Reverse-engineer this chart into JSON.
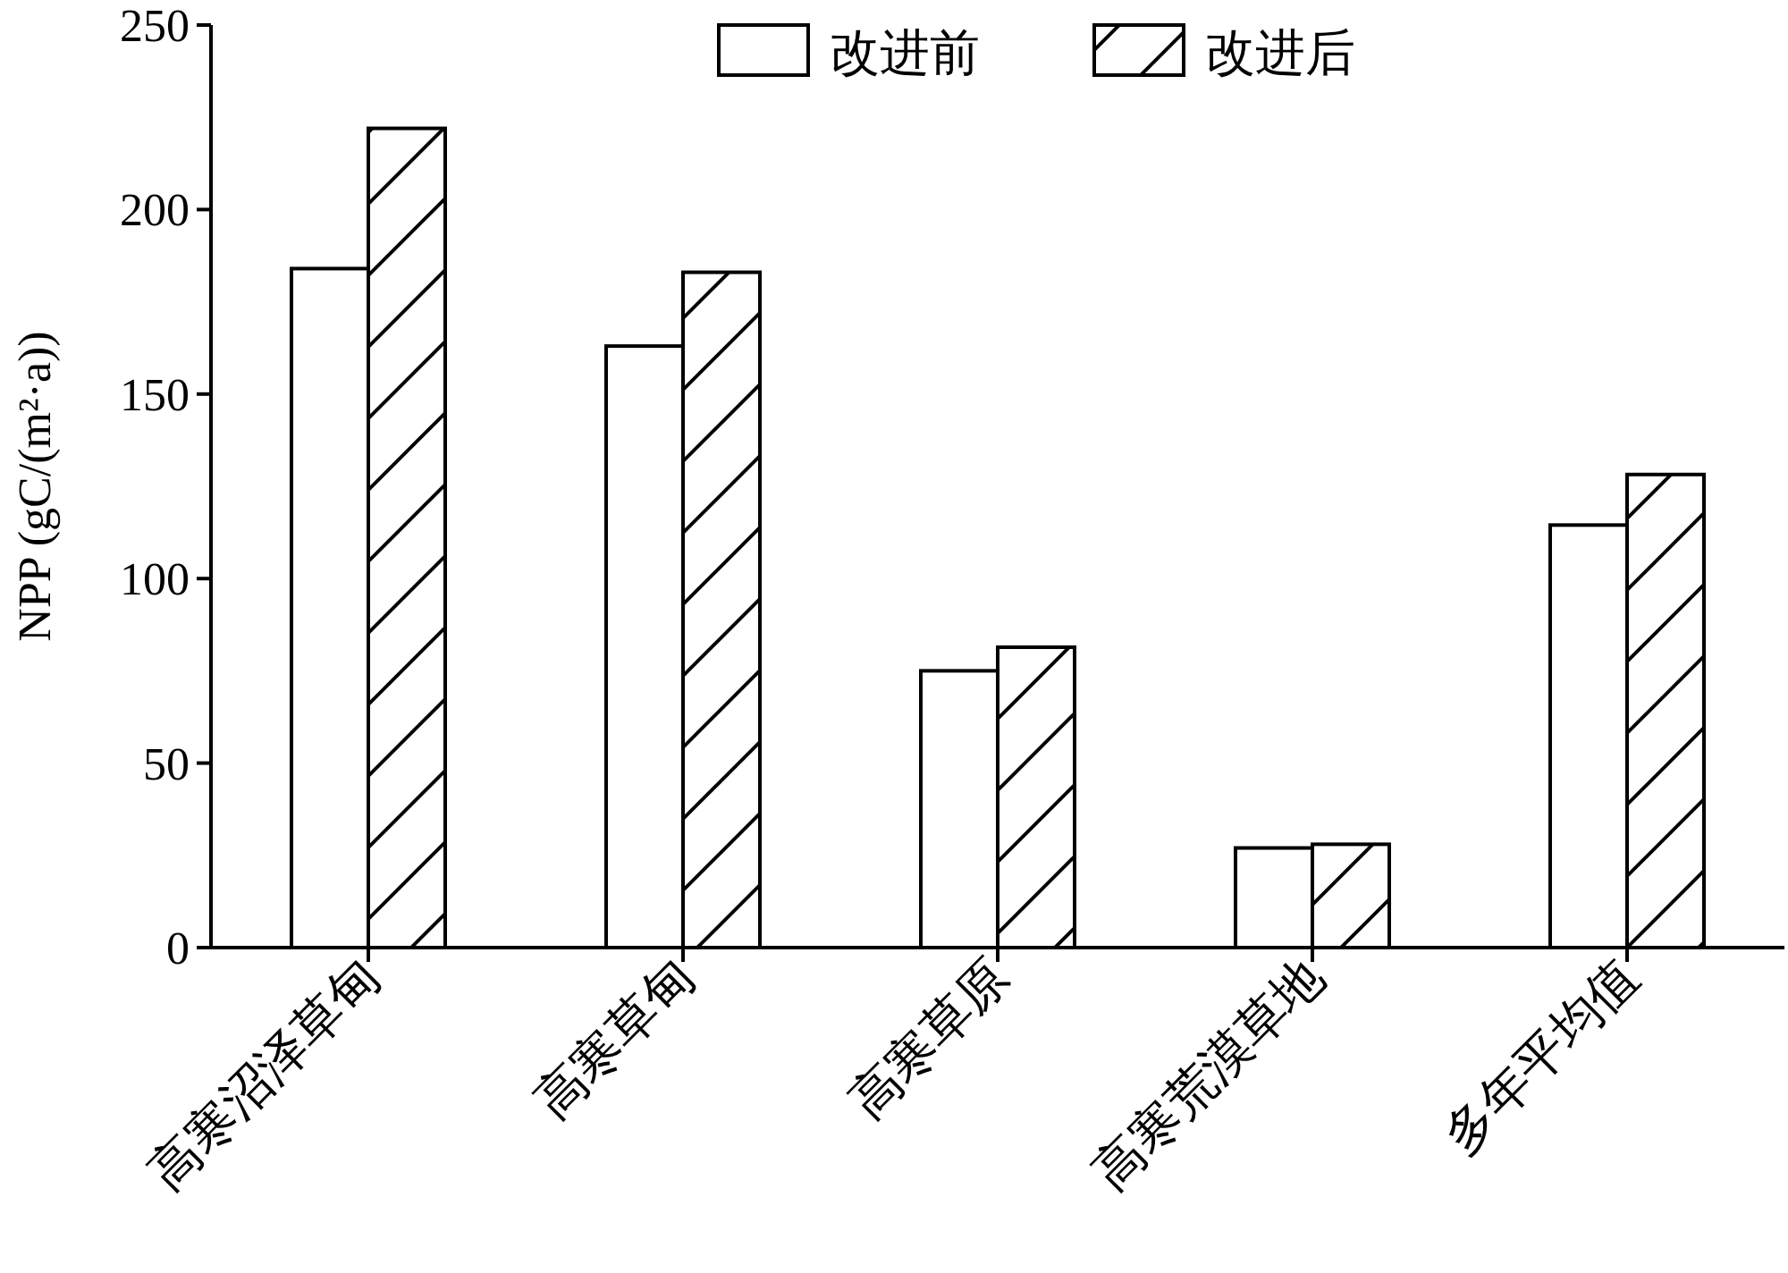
{
  "chart_data": {
    "type": "bar",
    "ylabel": "NPP (gC/(m²·a))",
    "categories": [
      "高寒沼泽草甸",
      "高寒草甸",
      "高寒草原",
      "高寒荒漠草地",
      "多年平均值"
    ],
    "series": [
      {
        "name": "改进前",
        "color": "#ffffff",
        "values": [
          184,
          163,
          75,
          27,
          114.5
        ]
      },
      {
        "name": "改进后",
        "color": "#000000",
        "values": [
          222,
          183,
          81.4,
          28,
          128.2
        ]
      }
    ],
    "ylim": [
      0,
      250
    ],
    "yticks": [
      0,
      50,
      100,
      150,
      200,
      250
    ],
    "grid": false,
    "legend": "top"
  }
}
